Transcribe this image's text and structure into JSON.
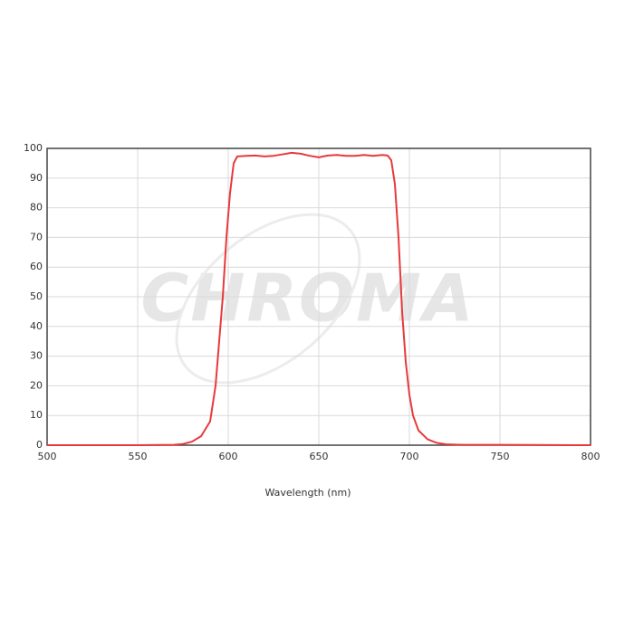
{
  "chart_data": {
    "type": "line",
    "x_label": "Wavelength (nm)",
    "watermark": "CHROMA",
    "x": [
      500,
      550,
      570,
      575,
      580,
      585,
      590,
      593,
      595,
      597,
      599,
      601,
      603,
      605,
      610,
      615,
      620,
      625,
      630,
      635,
      640,
      645,
      650,
      655,
      660,
      665,
      670,
      675,
      680,
      685,
      688,
      690,
      692,
      694,
      696,
      698,
      700,
      702,
      705,
      710,
      715,
      720,
      730,
      750,
      800
    ],
    "series": [
      {
        "color": "#e8393b",
        "values": [
          0,
          0,
          0.1,
          0.4,
          1.2,
          3,
          8,
          20,
          35,
          50,
          70,
          85,
          95,
          97.3,
          97.5,
          97.6,
          97.3,
          97.5,
          98,
          98.5,
          98.2,
          97.5,
          97,
          97.6,
          97.8,
          97.5,
          97.5,
          97.8,
          97.5,
          97.8,
          97.6,
          96,
          88,
          70,
          45,
          28,
          17,
          10,
          5,
          2,
          0.8,
          0.3,
          0.1,
          0.1,
          0
        ]
      }
    ],
    "xlim": [
      500,
      800
    ],
    "xticks": [
      500,
      550,
      600,
      650,
      700,
      750,
      800
    ],
    "ylim": [
      0,
      100
    ],
    "yticks": [
      0,
      10,
      20,
      30,
      40,
      50,
      60,
      70,
      80,
      90,
      100
    ],
    "grid": true
  }
}
